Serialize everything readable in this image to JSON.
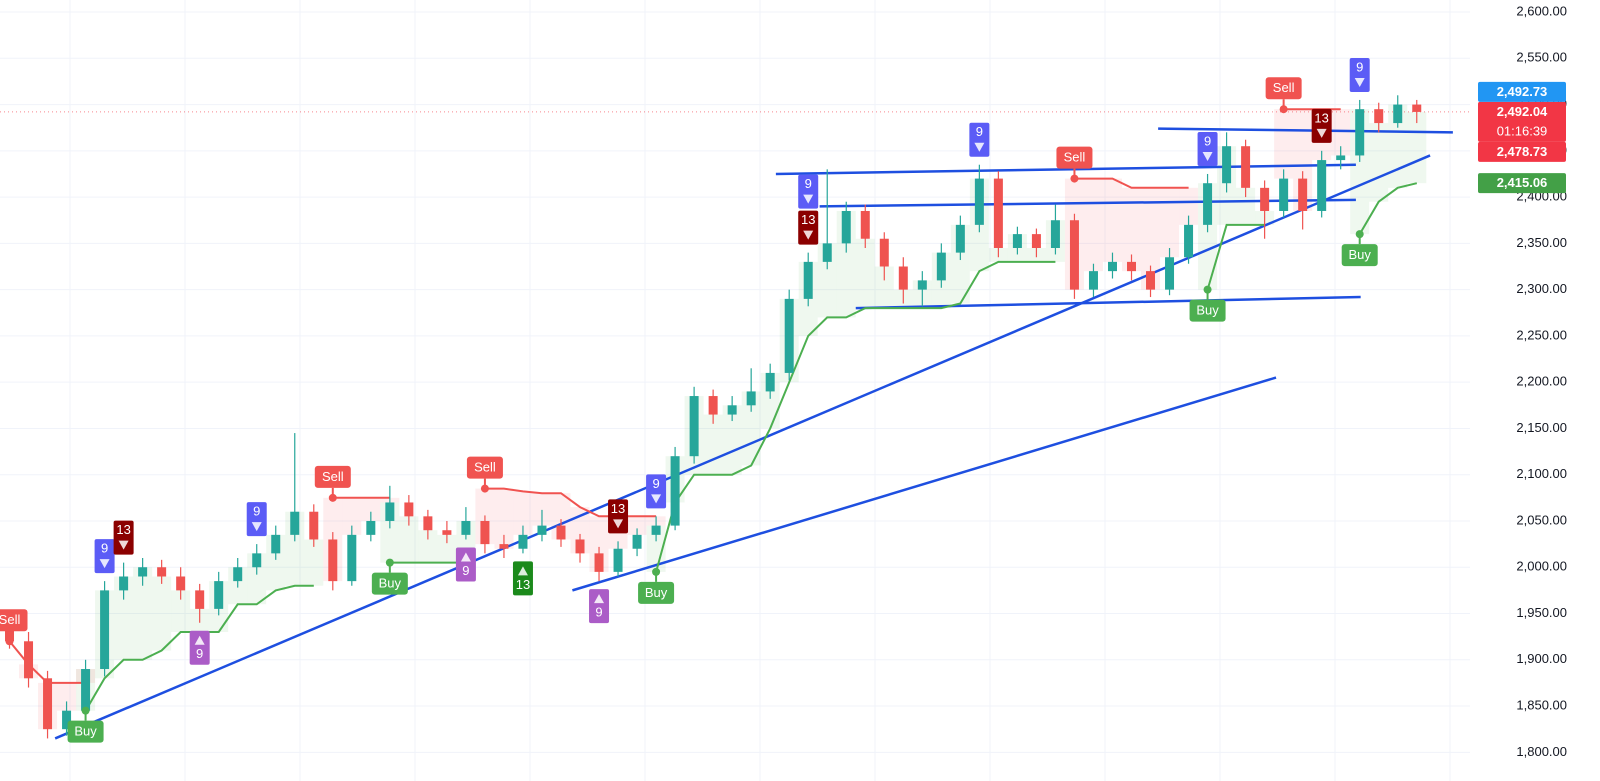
{
  "chart_data": {
    "type": "candlestick",
    "xlim": [
      -0.5,
      76.8
    ],
    "ylim": [
      1769,
      2613
    ],
    "yticks": [
      {
        "value": 1800,
        "label": "1,800.00"
      },
      {
        "value": 1850,
        "label": "1,850.00"
      },
      {
        "value": 1900,
        "label": "1,900.00"
      },
      {
        "value": 1950,
        "label": "1,950.00"
      },
      {
        "value": 2000,
        "label": "2,000.00"
      },
      {
        "value": 2050,
        "label": "2,050.00"
      },
      {
        "value": 2100,
        "label": "2,100.00"
      },
      {
        "value": 2150,
        "label": "2,150.00"
      },
      {
        "value": 2200,
        "label": "2,200.00"
      },
      {
        "value": 2250,
        "label": "2,250.00"
      },
      {
        "value": 2300,
        "label": "2,300.00"
      },
      {
        "value": 2350,
        "label": "2,350.00"
      },
      {
        "value": 2400,
        "label": "2,400.00"
      },
      {
        "value": 2450,
        "label": "2,450.00"
      },
      {
        "value": 2500,
        "label": "2,500.00"
      },
      {
        "value": 2550,
        "label": "2,550.00"
      },
      {
        "value": 2600,
        "label": "2,600.00"
      }
    ],
    "grid": true,
    "up_color": "#26a69a",
    "down_color": "#ef5350",
    "candles": [
      [
        1935,
        1945,
        1912,
        1920
      ],
      [
        1920,
        1930,
        1870,
        1880
      ],
      [
        1880,
        1888,
        1815,
        1825
      ],
      [
        1825,
        1855,
        1818,
        1845
      ],
      [
        1845,
        1900,
        1838,
        1890
      ],
      [
        1890,
        1985,
        1882,
        1975
      ],
      [
        1975,
        2005,
        1965,
        1990
      ],
      [
        1990,
        2010,
        1980,
        2000
      ],
      [
        2000,
        2008,
        1982,
        1990
      ],
      [
        1990,
        2000,
        1965,
        1975
      ],
      [
        1975,
        1982,
        1940,
        1955
      ],
      [
        1955,
        1995,
        1948,
        1985
      ],
      [
        1985,
        2010,
        1978,
        2000
      ],
      [
        2000,
        2025,
        1992,
        2015
      ],
      [
        2015,
        2045,
        2008,
        2035
      ],
      [
        2035,
        2145,
        2028,
        2060
      ],
      [
        2060,
        2068,
        2022,
        2030
      ],
      [
        2030,
        2038,
        1975,
        1985
      ],
      [
        1985,
        2045,
        1980,
        2035
      ],
      [
        2035,
        2060,
        2028,
        2050
      ],
      [
        2050,
        2088,
        2042,
        2070
      ],
      [
        2070,
        2078,
        2045,
        2055
      ],
      [
        2055,
        2062,
        2030,
        2040
      ],
      [
        2040,
        2050,
        2026,
        2035
      ],
      [
        2035,
        2065,
        2030,
        2050
      ],
      [
        2050,
        2056,
        2015,
        2025
      ],
      [
        2025,
        2035,
        2010,
        2020
      ],
      [
        2020,
        2045,
        2015,
        2035
      ],
      [
        2035,
        2062,
        2028,
        2045
      ],
      [
        2045,
        2052,
        2022,
        2030
      ],
      [
        2030,
        2036,
        2005,
        2015
      ],
      [
        2015,
        2022,
        1985,
        1995
      ],
      [
        1995,
        2028,
        1990,
        2020
      ],
      [
        2020,
        2042,
        2012,
        2035
      ],
      [
        2035,
        2055,
        2028,
        2045
      ],
      [
        2045,
        2130,
        2040,
        2120
      ],
      [
        2120,
        2195,
        2112,
        2185
      ],
      [
        2185,
        2192,
        2155,
        2165
      ],
      [
        2165,
        2185,
        2158,
        2175
      ],
      [
        2175,
        2215,
        2168,
        2190
      ],
      [
        2190,
        2220,
        2182,
        2210
      ],
      [
        2210,
        2300,
        2202,
        2290
      ],
      [
        2290,
        2340,
        2282,
        2330
      ],
      [
        2330,
        2430,
        2322,
        2350
      ],
      [
        2350,
        2395,
        2340,
        2385
      ],
      [
        2385,
        2392,
        2345,
        2355
      ],
      [
        2355,
        2362,
        2310,
        2325
      ],
      [
        2325,
        2335,
        2285,
        2300
      ],
      [
        2300,
        2320,
        2282,
        2310
      ],
      [
        2310,
        2350,
        2302,
        2340
      ],
      [
        2340,
        2380,
        2332,
        2370
      ],
      [
        2370,
        2435,
        2362,
        2420
      ],
      [
        2420,
        2428,
        2335,
        2345
      ],
      [
        2345,
        2368,
        2338,
        2360
      ],
      [
        2360,
        2366,
        2335,
        2345
      ],
      [
        2345,
        2392,
        2338,
        2375
      ],
      [
        2375,
        2382,
        2290,
        2300
      ],
      [
        2300,
        2328,
        2292,
        2320
      ],
      [
        2320,
        2340,
        2312,
        2330
      ],
      [
        2330,
        2338,
        2310,
        2320
      ],
      [
        2320,
        2326,
        2292,
        2300
      ],
      [
        2300,
        2345,
        2294,
        2335
      ],
      [
        2335,
        2380,
        2328,
        2370
      ],
      [
        2370,
        2425,
        2362,
        2415
      ],
      [
        2415,
        2470,
        2405,
        2455
      ],
      [
        2455,
        2462,
        2400,
        2410
      ],
      [
        2410,
        2418,
        2355,
        2385
      ],
      [
        2385,
        2430,
        2378,
        2420
      ],
      [
        2420,
        2428,
        2365,
        2385
      ],
      [
        2385,
        2450,
        2378,
        2440
      ],
      [
        2440,
        2455,
        2430,
        2445
      ],
      [
        2445,
        2505,
        2438,
        2495
      ],
      [
        2495,
        2502,
        2470,
        2480
      ],
      [
        2480,
        2510,
        2475,
        2500
      ],
      [
        2500,
        2505,
        2480,
        2492.04
      ]
    ],
    "supertrend": [
      {
        "color": "#4caf50",
        "fill": "rgba(76,175,80,0.09)",
        "values": [
          null,
          null,
          null,
          null,
          1845,
          1880,
          1900,
          1900,
          1910,
          1930,
          1930,
          1930,
          1960,
          1960,
          1975,
          1980,
          1980,
          null,
          null,
          null,
          2005,
          2005,
          2005,
          2005,
          2005,
          null,
          null,
          null,
          null,
          null,
          null,
          null,
          null,
          null,
          1995,
          2070,
          2100,
          2100,
          2100,
          2110,
          2150,
          2200,
          2250,
          2270,
          2270,
          2280,
          2280,
          2280,
          2280,
          2280,
          2285,
          2320,
          2330,
          2330,
          2330,
          2330,
          null,
          null,
          null,
          null,
          null,
          null,
          null,
          2300,
          2370,
          2370,
          2370,
          null,
          null,
          null,
          null,
          2360,
          2395,
          2410,
          2415
        ]
      },
      {
        "color": "#f05350",
        "fill": "rgba(242,54,69,0.09)",
        "values": [
          1920,
          1895,
          1875,
          1875,
          1875,
          null,
          null,
          null,
          null,
          null,
          null,
          null,
          null,
          null,
          null,
          null,
          null,
          2075,
          2075,
          2075,
          2075,
          null,
          null,
          null,
          null,
          2085,
          2085,
          2082,
          2080,
          2080,
          2065,
          2055,
          2055,
          2055,
          2055,
          null,
          null,
          null,
          null,
          null,
          null,
          null,
          null,
          null,
          null,
          null,
          null,
          null,
          null,
          null,
          null,
          null,
          null,
          null,
          null,
          null,
          2420,
          2420,
          2420,
          2410,
          2410,
          2410,
          2410,
          null,
          null,
          null,
          null,
          2495,
          2495,
          2495,
          2495,
          null,
          null,
          null,
          null
        ]
      }
    ],
    "signals": [
      {
        "index": 0,
        "price": 1920,
        "label": "Sell",
        "color": "#f05350",
        "position": "above"
      },
      {
        "index": 4,
        "price": 1845,
        "label": "Buy",
        "color": "#4caf50",
        "position": "below"
      },
      {
        "index": 17,
        "price": 2075,
        "label": "Sell",
        "color": "#f05350",
        "position": "above"
      },
      {
        "index": 20,
        "price": 2005,
        "label": "Buy",
        "color": "#4caf50",
        "position": "below"
      },
      {
        "index": 25,
        "price": 2085,
        "label": "Sell",
        "color": "#f05350",
        "position": "above"
      },
      {
        "index": 34,
        "price": 1995,
        "label": "Buy",
        "color": "#4caf50",
        "position": "below"
      },
      {
        "index": 56,
        "price": 2420,
        "label": "Sell",
        "color": "#f05350",
        "position": "above"
      },
      {
        "index": 63,
        "price": 2300,
        "label": "Buy",
        "color": "#4caf50",
        "position": "below"
      },
      {
        "index": 67,
        "price": 2495,
        "label": "Sell",
        "color": "#f05350",
        "position": "above"
      },
      {
        "index": 71,
        "price": 2360,
        "label": "Buy",
        "color": "#4caf50",
        "position": "below"
      }
    ],
    "markers": [
      {
        "index": 5,
        "label": "9",
        "color": "#5b5cf6",
        "position": "above"
      },
      {
        "index": 6,
        "label": "13",
        "color": "#8b0000",
        "position": "above"
      },
      {
        "index": 13,
        "label": "9",
        "color": "#5b5cf6",
        "position": "above"
      },
      {
        "index": 32,
        "label": "13",
        "color": "#8b0000",
        "position": "above"
      },
      {
        "index": 34,
        "label": "9",
        "color": "#5b5cf6",
        "position": "above"
      },
      {
        "index": 42,
        "label": "13",
        "color": "#8b0000",
        "position": "above"
      },
      {
        "index": 42,
        "label": "9",
        "color": "#5b5cf6",
        "position": "above"
      },
      {
        "index": 51,
        "label": "9",
        "color": "#5b5cf6",
        "position": "above"
      },
      {
        "index": 63,
        "label": "9",
        "color": "#5b5cf6",
        "position": "above"
      },
      {
        "index": 69,
        "label": "13",
        "color": "#8b0000",
        "position": "above"
      },
      {
        "index": 71,
        "label": "9",
        "color": "#5b5cf6",
        "position": "above"
      },
      {
        "index": 10,
        "label": "9",
        "color": "#ab5cc7",
        "position": "below"
      },
      {
        "index": 24,
        "label": "9",
        "color": "#ab5cc7",
        "position": "below"
      },
      {
        "index": 27,
        "label": "13",
        "color": "#1b8a1b",
        "position": "below"
      },
      {
        "index": 31,
        "label": "9",
        "color": "#ab5cc7",
        "position": "below"
      }
    ],
    "trendlines": {
      "color": "#1e4fe0",
      "lines": [
        {
          "x": [
            2.4,
            74.7
          ],
          "y": [
            1815,
            2445
          ]
        },
        {
          "x": [
            29.6,
            66.6
          ],
          "y": [
            1975,
            2205
          ]
        },
        {
          "x": [
            40.3,
            70.8
          ],
          "y": [
            2425,
            2435
          ]
        },
        {
          "x": [
            42.6,
            70.8
          ],
          "y": [
            2390,
            2397
          ]
        },
        {
          "x": [
            44.5,
            71.05
          ],
          "y": [
            2280,
            2292
          ]
        },
        {
          "x": [
            60.4,
            75.9
          ],
          "y": [
            2474,
            2470
          ]
        }
      ]
    },
    "price_labels": [
      {
        "value": 2492.04,
        "label": "2,492.04",
        "sublabel": "01:16:39",
        "color": "#f23645"
      },
      {
        "value": 2492.73,
        "label": "2,492.73",
        "color": "#2196f3"
      },
      {
        "value": 2478.73,
        "label": "2,478.73",
        "color": "#f23645"
      },
      {
        "value": 2415.06,
        "label": "2,415.06",
        "color": "#43a047"
      }
    ]
  }
}
